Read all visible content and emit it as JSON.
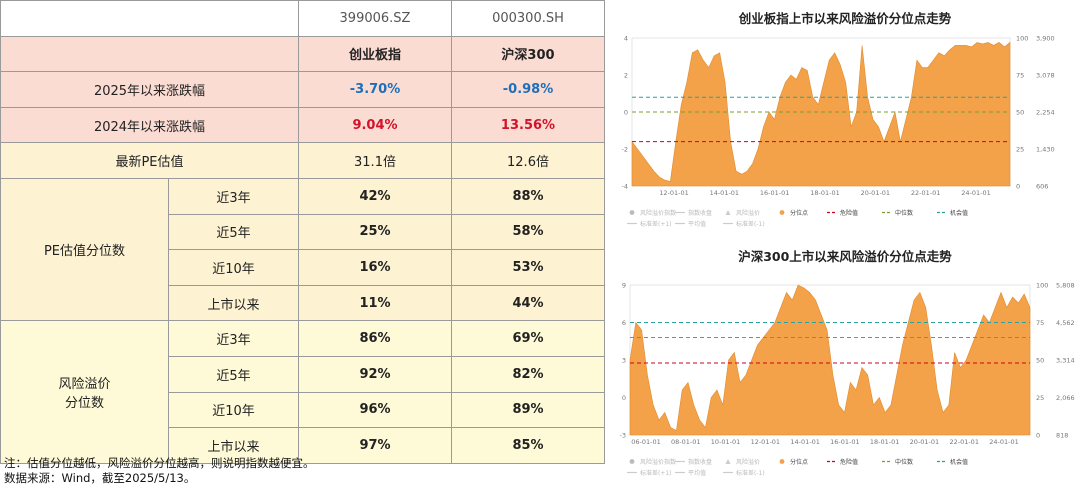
{
  "table": {
    "codes": [
      "399006.SZ",
      "000300.SH"
    ],
    "names": [
      "创业板指",
      "沪深300"
    ],
    "ytd_2025": {
      "label": "2025年以来涨跌幅",
      "values": [
        "-3.70%",
        "-0.98%"
      ]
    },
    "ytd_2024": {
      "label": "2024年以来涨跌幅",
      "values": [
        "9.04%",
        "13.56%"
      ]
    },
    "latest_pe": {
      "label": "最新PE估值",
      "values": [
        "31.1倍",
        "12.6倍"
      ]
    },
    "pe_percentile": {
      "label": "PE估值分位数",
      "rows": [
        {
          "period": "近3年",
          "values": [
            "42%",
            "88%"
          ]
        },
        {
          "period": "近5年",
          "values": [
            "25%",
            "58%"
          ]
        },
        {
          "period": "近10年",
          "values": [
            "16%",
            "53%"
          ]
        },
        {
          "period": "上市以来",
          "values": [
            "11%",
            "44%"
          ]
        }
      ]
    },
    "risk_premium_percentile": {
      "label_line1": "风险溢价",
      "label_line2": "分位数",
      "rows": [
        {
          "period": "近3年",
          "values": [
            "86%",
            "69%"
          ]
        },
        {
          "period": "近5年",
          "values": [
            "92%",
            "82%"
          ]
        },
        {
          "period": "近10年",
          "values": [
            "96%",
            "89%"
          ]
        },
        {
          "period": "上市以来",
          "values": [
            "97%",
            "85%"
          ]
        }
      ]
    }
  },
  "notes": {
    "line1": "注：估值分位越低，风险溢价分位越高，则说明指数越便宜。",
    "line2": "数据来源：Wind，截至2025/5/13。"
  },
  "colors": {
    "area": "#f3a24a",
    "danger": "#d0021b",
    "median": "#7a9e2e",
    "opportunity": "#2aa0a0"
  },
  "chart_data": [
    {
      "type": "area",
      "title": "创业板指上市以来风险溢价分位点走势",
      "x_ticks": [
        "12-01-01",
        "14-01-01",
        "16-01-01",
        "18-01-01",
        "20-01-01",
        "22-01-01",
        "24-01-01"
      ],
      "y_left_ticks": [
        "4",
        "2",
        "0",
        "-2",
        "-4"
      ],
      "y_mid_ticks": [
        "100",
        "75",
        "50",
        "25",
        "0"
      ],
      "y_right_ticks": [
        "3,900",
        "3,078",
        "2,254",
        "1,430",
        "606"
      ],
      "ylim": [
        0,
        100
      ],
      "reference_lines": [
        {
          "name": "危险值",
          "value": 30
        },
        {
          "name": "中位数",
          "value": 50
        },
        {
          "name": "机会值",
          "value": 60
        }
      ],
      "series": [
        {
          "name": "分位点",
          "x_range": [
            "2010-06",
            "2025-05"
          ],
          "values": [
            30,
            25,
            20,
            15,
            10,
            6,
            4,
            3,
            30,
            55,
            70,
            90,
            92,
            85,
            80,
            88,
            90,
            70,
            30,
            10,
            8,
            10,
            15,
            25,
            40,
            50,
            45,
            60,
            70,
            75,
            72,
            80,
            78,
            60,
            55,
            70,
            85,
            90,
            82,
            70,
            40,
            50,
            95,
            60,
            45,
            40,
            30,
            40,
            50,
            30,
            45,
            60,
            85,
            80,
            80,
            85,
            90,
            88,
            92,
            95,
            95,
            95,
            94,
            97,
            96,
            97,
            95,
            97,
            94,
            97
          ]
        }
      ],
      "legend": [
        "风险溢价指数",
        "指数收盘",
        "风险溢价",
        "分位点",
        "危险值",
        "中位数",
        "机会值",
        "标准差(+1)",
        "平均值",
        "标准差(-1)"
      ]
    },
    {
      "type": "area",
      "title": "沪深300上市以来风险溢价分位点走势",
      "x_ticks": [
        "06-01-01",
        "08-01-01",
        "10-01-01",
        "12-01-01",
        "14-01-01",
        "16-01-01",
        "18-01-01",
        "20-01-01",
        "22-01-01",
        "24-01-01"
      ],
      "y_left_ticks": [
        "9",
        "6",
        "3",
        "0",
        "-3"
      ],
      "y_mid_ticks": [
        "100",
        "75",
        "50",
        "25",
        "0"
      ],
      "y_right_ticks": [
        "5,808",
        "4,562",
        "3,314",
        "2,066",
        "818"
      ],
      "ylim": [
        0,
        100
      ],
      "reference_lines": [
        {
          "name": "危险值",
          "value": 48
        },
        {
          "name": "中位数",
          "value": 65
        },
        {
          "name": "机会值",
          "value": 75
        }
      ],
      "series": [
        {
          "name": "分位点",
          "x_range": [
            "2005-04",
            "2025-05"
          ],
          "values": [
            50,
            75,
            70,
            40,
            20,
            10,
            15,
            5,
            3,
            30,
            35,
            20,
            10,
            5,
            25,
            30,
            20,
            50,
            55,
            35,
            40,
            50,
            60,
            65,
            70,
            75,
            85,
            95,
            90,
            100,
            98,
            95,
            90,
            80,
            70,
            40,
            20,
            15,
            35,
            30,
            45,
            40,
            20,
            25,
            15,
            20,
            40,
            60,
            75,
            90,
            95,
            85,
            60,
            30,
            15,
            20,
            55,
            45,
            50,
            60,
            70,
            80,
            75,
            85,
            95,
            85,
            92,
            88,
            94,
            85
          ]
        }
      ],
      "legend": [
        "风险溢价指数",
        "指数收盘",
        "风险溢价",
        "分位点",
        "危险值",
        "中位数",
        "机会值",
        "标准差(+1)",
        "平均值",
        "标准差(-1)"
      ]
    }
  ]
}
